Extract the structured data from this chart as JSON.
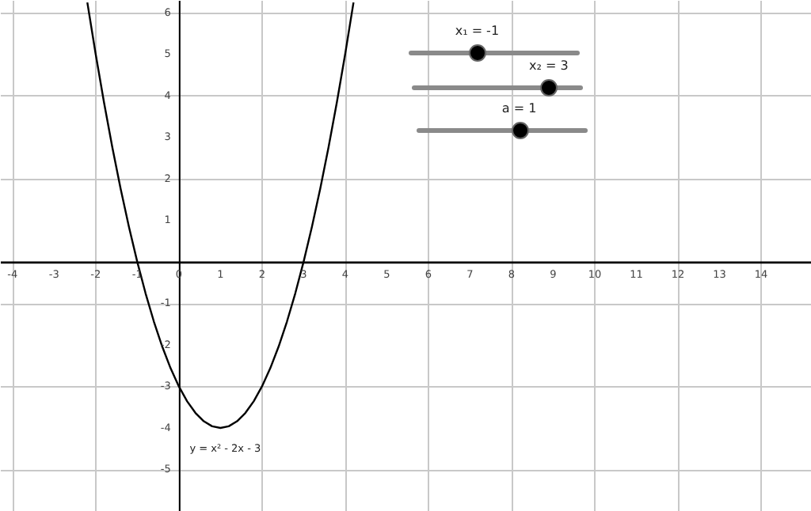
{
  "chart_data": {
    "type": "line",
    "x": [
      -2.2,
      -2.0,
      -1.8,
      -1.6,
      -1.4,
      -1.2,
      -1.0,
      -0.8,
      -0.6,
      -0.4,
      -0.2,
      0,
      0.2,
      0.4,
      0.6,
      0.8,
      1.0,
      1.2,
      1.4,
      1.6,
      1.8,
      2.0,
      2.2,
      2.4,
      2.6,
      2.8,
      3.0,
      3.2,
      3.4,
      3.6,
      3.8,
      4.0,
      4.2
    ],
    "series": [
      {
        "color": "#000000",
        "values": [
          6.24,
          5,
          3.84,
          2.76,
          1.76,
          0.84,
          0,
          -0.76,
          -1.44,
          -2.04,
          -2.56,
          -3,
          -3.36,
          -3.64,
          -3.84,
          -3.96,
          -4,
          -3.96,
          -3.84,
          -3.64,
          -3.36,
          -3,
          -2.56,
          -2.04,
          -1.44,
          -0.76,
          0,
          0.84,
          1.76,
          2.76,
          3.84,
          5,
          6.24
        ]
      }
    ],
    "xlim": [
      -4.3,
      15.2
    ],
    "ylim": [
      -6,
      6.3
    ],
    "xticks": [
      -4,
      -3,
      -2,
      -1,
      0,
      1,
      2,
      3,
      4,
      5,
      6,
      7,
      8,
      9,
      10,
      11,
      12,
      13,
      14
    ],
    "yticks": [
      -5,
      -4,
      -3,
      -2,
      -1,
      1,
      2,
      3,
      4,
      5,
      6
    ],
    "grid": true,
    "marker": "none",
    "line_style": "solid",
    "annotations": [
      {
        "text": "y = x² - 2x - 3",
        "x": 1,
        "y": -4
      },
      "x₁ = -1",
      "x₂ = 3",
      "a = 1"
    ]
  }
}
